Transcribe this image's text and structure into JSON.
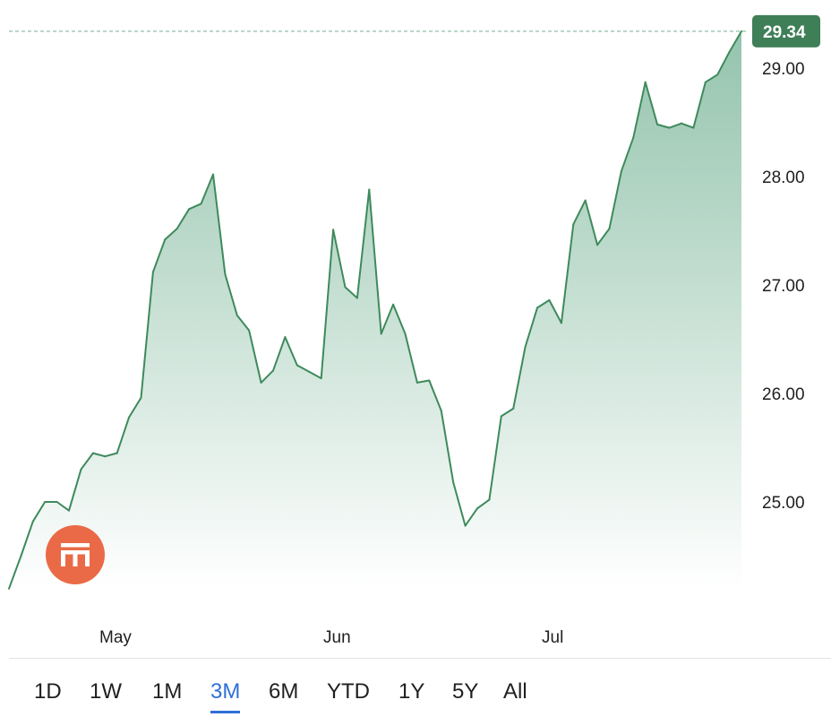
{
  "chart_data": {
    "type": "area",
    "x_ticks": [
      "May",
      "Jun",
      "Jul"
    ],
    "y_ticks": [
      "25.00",
      "26.00",
      "27.00",
      "28.00",
      "29.00"
    ],
    "y_tick_values": [
      25,
      26,
      27,
      28,
      29
    ],
    "ylim": [
      24.2,
      29.6
    ],
    "last_value_label": "29.34",
    "last_value": 29.34,
    "grid": false,
    "values": [
      24.2,
      24.5,
      24.82,
      25.0,
      25.0,
      24.92,
      25.3,
      25.45,
      25.42,
      25.45,
      25.78,
      25.96,
      27.12,
      27.42,
      27.52,
      27.7,
      27.75,
      28.02,
      27.1,
      26.72,
      26.58,
      26.1,
      26.21,
      26.52,
      26.26,
      26.2,
      26.14,
      27.51,
      26.98,
      26.88,
      27.88,
      26.55,
      26.82,
      26.55,
      26.1,
      26.12,
      25.84,
      25.18,
      24.78,
      24.94,
      25.02,
      25.79,
      25.86,
      26.43,
      26.79,
      26.86,
      26.65,
      27.56,
      27.78,
      27.37,
      27.52,
      28.05,
      28.36,
      28.87,
      28.48,
      28.45,
      28.49,
      28.45,
      28.87,
      28.94,
      29.15,
      29.34
    ],
    "colors": {
      "line": "#3e8a5c",
      "fill_top": "#8fc1a9",
      "fill_bottom": "#ffffff",
      "badge": "#3e7f57",
      "dashed": "#8fbfa6"
    }
  },
  "range_selector": {
    "items": [
      "1D",
      "1W",
      "1M",
      "3M",
      "6M",
      "YTD",
      "1Y",
      "5Y",
      "All"
    ],
    "active": "3M",
    "active_color": "#2f6fd8"
  },
  "logo": {
    "icon": "bank-building-icon",
    "color": "#ea6a47"
  }
}
